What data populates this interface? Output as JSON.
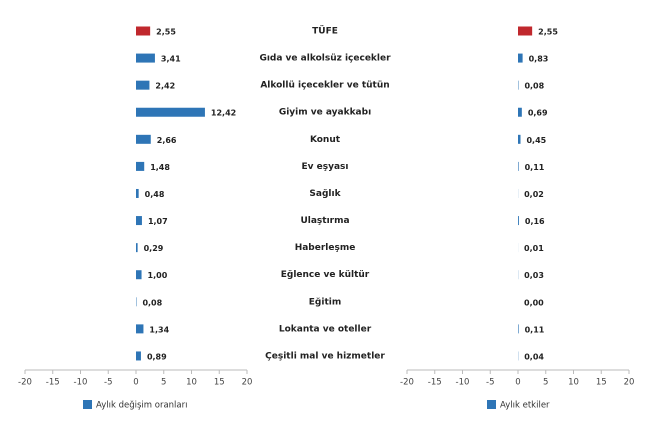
{
  "chart_data": [
    {
      "type": "bar",
      "orientation": "horizontal",
      "categories": [
        "TÜFE",
        "Gıda ve alkolsüz içecekler",
        "Alkollü içecekler ve tütün",
        "Giyim ve ayakkabı",
        "Konut",
        "Ev eşyası",
        "Sağlık",
        "Ulaştırma",
        "Haberleşme",
        "Eğlence ve kültür",
        "Eğitim",
        "Lokanta ve oteller",
        "Çeşitli mal ve hizmetler"
      ],
      "series": [
        {
          "name": "Aylık değişim oranları",
          "color": "#2e75b6",
          "colors": [
            "#c0282d",
            "#2e75b6",
            "#2e75b6",
            "#2e75b6",
            "#2e75b6",
            "#2e75b6",
            "#2e75b6",
            "#2e75b6",
            "#2e75b6",
            "#2e75b6",
            "#2e75b6",
            "#2e75b6",
            "#2e75b6"
          ],
          "values": [
            2.55,
            3.41,
            2.42,
            12.42,
            2.66,
            1.48,
            0.48,
            1.07,
            0.29,
            1.0,
            0.08,
            1.34,
            0.89
          ],
          "value_labels": [
            "2,55",
            "3,41",
            "2,42",
            "12,42",
            "2,66",
            "1,48",
            "0,48",
            "1,07",
            "0,29",
            "1,00",
            "0,08",
            "1,34",
            "0,89"
          ]
        }
      ],
      "xlim": [
        -20,
        20
      ],
      "xticks": [
        -20,
        -15,
        -10,
        -5,
        0,
        5,
        10,
        15,
        20
      ]
    },
    {
      "type": "bar",
      "orientation": "horizontal",
      "series": [
        {
          "name": "Aylık etkiler",
          "color": "#2e75b6",
          "colors": [
            "#c0282d",
            "#2e75b6",
            "#2e75b6",
            "#2e75b6",
            "#2e75b6",
            "#2e75b6",
            "#2e75b6",
            "#2e75b6",
            "#2e75b6",
            "#2e75b6",
            "#2e75b6",
            "#2e75b6",
            "#2e75b6"
          ],
          "values": [
            2.55,
            0.83,
            0.08,
            0.69,
            0.45,
            0.11,
            0.02,
            0.16,
            0.01,
            0.03,
            0.0,
            0.11,
            0.04
          ],
          "value_labels": [
            "2,55",
            "0,83",
            "0,08",
            "0,69",
            "0,45",
            "0,11",
            "0,02",
            "0,16",
            "0,01",
            "0,03",
            "0,00",
            "0,11",
            "0,04"
          ]
        }
      ],
      "xlim": [
        -20,
        20
      ],
      "xticks": [
        -20,
        -15,
        -10,
        -5,
        0,
        5,
        10,
        15,
        20
      ]
    }
  ]
}
